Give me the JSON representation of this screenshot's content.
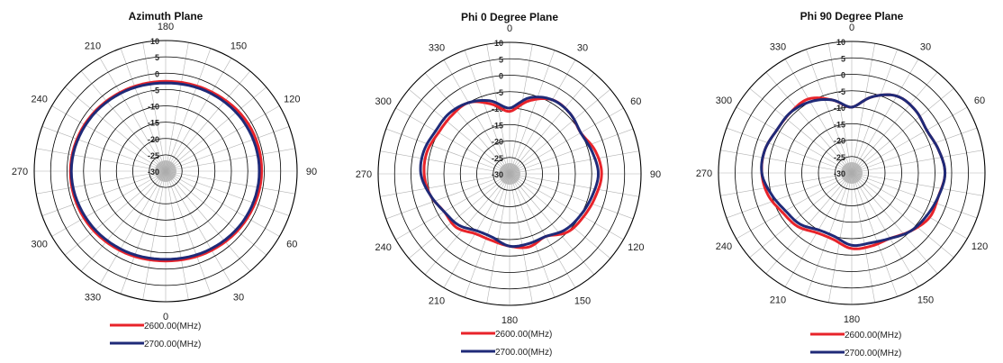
{
  "colors": {
    "series_a": "#e8232a",
    "series_b": "#1f2a78",
    "grid": "#b4b4b4",
    "ring": "#000000"
  },
  "chart_data": [
    {
      "type": "polar",
      "title": "Azimuth Plane",
      "angle_labels": [
        {
          "text": "180",
          "angle": 0
        },
        {
          "text": "150",
          "angle": 30
        },
        {
          "text": "120",
          "angle": 60
        },
        {
          "text": "90",
          "angle": 90
        },
        {
          "text": "60",
          "angle": 120
        },
        {
          "text": "30",
          "angle": 150
        },
        {
          "text": "0",
          "angle": 180
        },
        {
          "text": "330",
          "angle": 210
        },
        {
          "text": "300",
          "angle": 240
        },
        {
          "text": "270",
          "angle": 270
        },
        {
          "text": "240",
          "angle": 300
        },
        {
          "text": "210",
          "angle": 330
        }
      ],
      "radial_ticks": [
        "10",
        "5",
        "0",
        "-5",
        "-10",
        "-15",
        "-20",
        "-25",
        "-30"
      ],
      "rlim": [
        -30,
        10
      ],
      "series": [
        {
          "name": "2600.00(MHz)",
          "angles": [
            0,
            30,
            60,
            90,
            120,
            150,
            180,
            210,
            240,
            270,
            300,
            330
          ],
          "values": [
            -2.5,
            -2.0,
            -1.0,
            -0.8,
            -1.3,
            -2.0,
            -2.5,
            -2.0,
            -1.3,
            -1.0,
            -1.5,
            -2.2
          ]
        },
        {
          "name": "2700.00(MHz)",
          "angles": [
            0,
            30,
            60,
            90,
            120,
            150,
            180,
            210,
            240,
            270,
            300,
            330
          ],
          "values": [
            -3.0,
            -2.5,
            -1.8,
            -1.5,
            -1.8,
            -2.5,
            -3.0,
            -2.5,
            -1.8,
            -1.3,
            -1.8,
            -2.5
          ]
        }
      ],
      "legend": [
        "2600.00(MHz)",
        "2700.00(MHz)"
      ]
    },
    {
      "type": "polar",
      "title": "Phi 0 Degree Plane",
      "angle_labels": [
        {
          "text": "0",
          "angle": 0
        },
        {
          "text": "30",
          "angle": 30
        },
        {
          "text": "60",
          "angle": 60
        },
        {
          "text": "90",
          "angle": 90
        },
        {
          "text": "120",
          "angle": 120
        },
        {
          "text": "150",
          "angle": 150
        },
        {
          "text": "180",
          "angle": 180
        },
        {
          "text": "210",
          "angle": 210
        },
        {
          "text": "240",
          "angle": 240
        },
        {
          "text": "270",
          "angle": 270
        },
        {
          "text": "300",
          "angle": 300
        },
        {
          "text": "330",
          "angle": 330
        }
      ],
      "radial_ticks": [
        "10",
        "5",
        "0",
        "-5",
        "-10",
        "-15",
        "-20",
        "-25",
        "-30"
      ],
      "rlim": [
        -30,
        10
      ],
      "series": [
        {
          "name": "2600.00(MHz)",
          "angles": [
            0,
            15,
            30,
            45,
            60,
            75,
            90,
            105,
            120,
            135,
            150,
            165,
            180,
            195,
            210,
            225,
            240,
            255,
            270,
            285,
            300,
            315,
            330,
            345
          ],
          "values": [
            -11,
            -7,
            -4,
            -4,
            -5,
            -3,
            -2,
            -3,
            -4,
            -5,
            -8,
            -7,
            -8,
            -9,
            -9,
            -7,
            -7,
            -5,
            -4,
            -4,
            -5,
            -5,
            -5,
            -8
          ]
        },
        {
          "name": "2700.00(MHz)",
          "angles": [
            0,
            15,
            30,
            45,
            60,
            75,
            90,
            105,
            120,
            135,
            150,
            165,
            180,
            195,
            210,
            225,
            240,
            255,
            270,
            285,
            300,
            315,
            330,
            345
          ],
          "values": [
            -10,
            -6,
            -4,
            -4,
            -5,
            -4,
            -3,
            -4,
            -5,
            -6,
            -8,
            -8,
            -8,
            -10,
            -10,
            -8,
            -7,
            -5,
            -3,
            -3,
            -4,
            -4,
            -5,
            -7
          ]
        }
      ],
      "legend": [
        "2600.00(MHz)",
        "2700.00(MHz)"
      ]
    },
    {
      "type": "polar",
      "title": "Phi 90 Degree Plane",
      "angle_labels": [
        {
          "text": "0",
          "angle": 0
        },
        {
          "text": "30",
          "angle": 30
        },
        {
          "text": "60",
          "angle": 60
        },
        {
          "text": "120",
          "angle": 120
        },
        {
          "text": "150",
          "angle": 150
        },
        {
          "text": "180",
          "angle": 180
        },
        {
          "text": "210",
          "angle": 210
        },
        {
          "text": "240",
          "angle": 240
        },
        {
          "text": "270",
          "angle": 270
        },
        {
          "text": "300",
          "angle": 300
        },
        {
          "text": "330",
          "angle": 330
        }
      ],
      "radial_ticks": [
        "10",
        "5",
        "0",
        "-5",
        "-10",
        "-15",
        "-20",
        "-25",
        "-30"
      ],
      "rlim": [
        -30,
        10
      ],
      "series": [
        {
          "name": "2600.00(MHz)",
          "angles": [
            0,
            15,
            30,
            45,
            60,
            75,
            90,
            105,
            120,
            135,
            150,
            165,
            180,
            195,
            210,
            225,
            240,
            255,
            270,
            285,
            300,
            315,
            330,
            345
          ],
          "values": [
            -10,
            -6,
            -3,
            -3,
            -4,
            -3,
            -2,
            -3,
            -3,
            -5,
            -7,
            -7,
            -7,
            -9,
            -9,
            -7,
            -6,
            -4,
            -3,
            -3,
            -4,
            -4,
            -4,
            -7
          ]
        },
        {
          "name": "2700.00(MHz)",
          "angles": [
            0,
            15,
            30,
            45,
            60,
            75,
            90,
            105,
            120,
            135,
            150,
            165,
            180,
            195,
            210,
            225,
            240,
            255,
            270,
            285,
            300,
            315,
            330,
            345
          ],
          "values": [
            -10,
            -6,
            -3,
            -3,
            -4,
            -3,
            -2,
            -3,
            -4,
            -5,
            -7,
            -8,
            -8,
            -10,
            -10,
            -8,
            -7,
            -5,
            -3,
            -3,
            -4,
            -4,
            -5,
            -7
          ]
        }
      ],
      "legend": [
        "2600.00(MHz)",
        "2700.00(MHz)"
      ]
    }
  ]
}
